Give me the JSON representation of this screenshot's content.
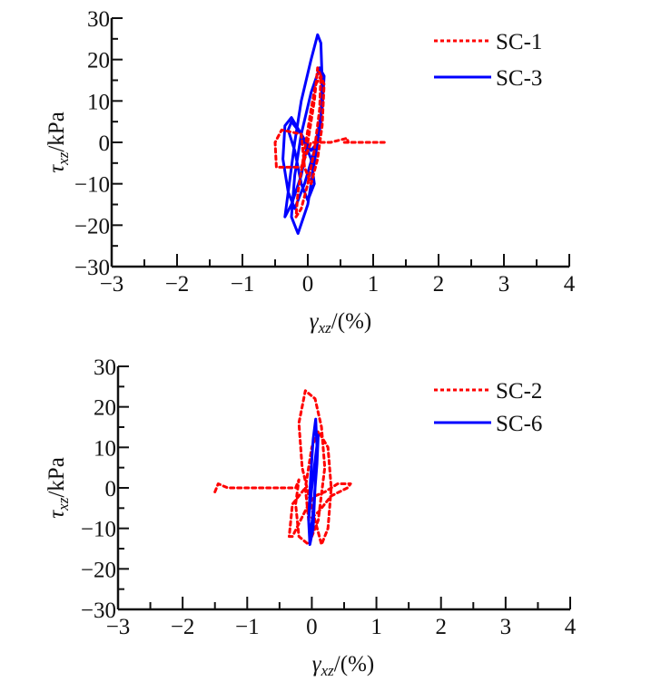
{
  "chart_data": [
    {
      "type": "line",
      "title": "",
      "xlabel": "γxz/(%)",
      "xlabel_parts": {
        "symbol": "γ",
        "sub": "xz",
        "rest": "/(%)"
      },
      "ylabel": "τxz/kPa",
      "ylabel_parts": {
        "symbol": "τ",
        "sub": "xz",
        "rest": "/kPa"
      },
      "xlim": [
        -3,
        4
      ],
      "ylim": [
        -30,
        30
      ],
      "xticks": [
        "−3",
        "−2",
        "−1",
        "0",
        "1",
        "2",
        "3",
        "4"
      ],
      "yticks": [
        "30",
        "20",
        "10",
        "0",
        "−10",
        "−20",
        "−30"
      ],
      "xtick_values": [
        -3,
        -2,
        -1,
        0,
        1,
        2,
        3,
        4
      ],
      "ytick_values": [
        30,
        20,
        10,
        0,
        -10,
        -20,
        -30
      ],
      "grid": false,
      "legend_position": "top-right",
      "series": [
        {
          "name": "SC-3",
          "color": "#0000ff",
          "style": "solid",
          "x": [
            0.0,
            -0.1,
            -0.25,
            -0.35,
            -0.3,
            -0.2,
            -0.1,
            0.05,
            0.15,
            0.2,
            0.22,
            0.2,
            0.1,
            0.0,
            -0.15,
            -0.25,
            -0.2,
            -0.1,
            0.05,
            0.18,
            0.25,
            0.22,
            0.1,
            -0.05,
            -0.2,
            -0.3,
            -0.38,
            -0.35,
            -0.25,
            -0.1,
            0.05,
            0.1,
            0.0,
            -0.1,
            -0.2,
            -0.3,
            -0.25,
            -0.1,
            0.05,
            0.15
          ],
          "y": [
            0,
            -8,
            -15,
            -18,
            -12,
            0,
            10,
            20,
            26,
            24,
            15,
            5,
            -5,
            -15,
            -22,
            -18,
            -8,
            2,
            12,
            18,
            16,
            8,
            -2,
            -10,
            -16,
            -12,
            -4,
            4,
            6,
            2,
            -4,
            -10,
            -14,
            -10,
            -2,
            3,
            5,
            2,
            -2,
            0
          ]
        },
        {
          "name": "SC-1",
          "color": "#ff0000",
          "style": "dotted",
          "x": [
            0.0,
            0.1,
            0.15,
            0.2,
            0.18,
            0.1,
            0.0,
            -0.1,
            -0.18,
            -0.15,
            -0.05,
            0.05,
            0.12,
            0.2,
            0.25,
            0.22,
            0.15,
            0.05,
            -0.05,
            -0.1,
            -0.4,
            -0.5,
            -0.48,
            -0.4,
            -0.1,
            0.0,
            0.05,
            0.15,
            0.25,
            0.35,
            0.6,
            0.62,
            0.55,
            0.6,
            0.8,
            1.0,
            1.2
          ],
          "y": [
            0,
            10,
            18,
            16,
            8,
            -2,
            -10,
            -16,
            -18,
            -12,
            -2,
            8,
            14,
            16,
            14,
            4,
            -4,
            -10,
            -6,
            2,
            3,
            0,
            -6,
            -6,
            -6,
            -2,
            0,
            0,
            0,
            0,
            1,
            0,
            0,
            0,
            0,
            0,
            0
          ]
        }
      ]
    },
    {
      "type": "line",
      "title": "",
      "xlabel": "γxz/(%)",
      "xlabel_parts": {
        "symbol": "γ",
        "sub": "xz",
        "rest": "/(%)"
      },
      "ylabel": "τxz/kPa",
      "ylabel_parts": {
        "symbol": "τ",
        "sub": "xz",
        "rest": "/kPa"
      },
      "xlim": [
        -3,
        4
      ],
      "ylim": [
        -30,
        30
      ],
      "xticks": [
        "−3",
        "−2",
        "−1",
        "0",
        "1",
        "2",
        "3",
        "4"
      ],
      "yticks": [
        "30",
        "20",
        "10",
        "0",
        "−10",
        "−20",
        "−30"
      ],
      "xtick_values": [
        -3,
        -2,
        -1,
        0,
        1,
        2,
        3,
        4
      ],
      "ytick_values": [
        30,
        20,
        10,
        0,
        -10,
        -20,
        -30
      ],
      "grid": false,
      "legend_position": "top-right",
      "series": [
        {
          "name": "SC-2",
          "color": "#ff0000",
          "style": "dotted",
          "x": [
            -1.5,
            -1.45,
            -1.3,
            -1.1,
            -0.9,
            -0.6,
            -0.4,
            -0.25,
            -0.2,
            -0.25,
            -0.2,
            -0.05,
            0.1,
            0.2,
            0.15,
            0.05,
            -0.1,
            -0.2,
            -0.15,
            0.0,
            0.15,
            0.25,
            0.3,
            0.25,
            0.1,
            0.0,
            -0.1,
            -0.05,
            0.1,
            0.3,
            0.55,
            0.6,
            0.4,
            0.2,
            0.05,
            -0.05,
            -0.3,
            -0.35,
            -0.3,
            -0.1
          ],
          "y": [
            -1,
            1,
            0,
            0,
            0,
            0,
            0,
            0,
            2,
            -4,
            -12,
            -14,
            -8,
            5,
            15,
            22,
            24,
            16,
            5,
            -5,
            -14,
            -10,
            0,
            10,
            14,
            10,
            0,
            -8,
            -6,
            -2,
            0,
            1,
            1,
            -1,
            -2,
            -4,
            -12,
            -12,
            -4,
            0
          ]
        },
        {
          "name": "SC-6",
          "color": "#0000ff",
          "style": "solid",
          "x": [
            0.0,
            -0.05,
            -0.03,
            0.02,
            0.05,
            0.08,
            0.06,
            0.02,
            -0.02,
            -0.05,
            -0.02,
            0.03,
            0.08,
            0.1,
            0.06,
            0.0
          ],
          "y": [
            0,
            -8,
            -14,
            -10,
            0,
            10,
            17,
            12,
            2,
            -8,
            -12,
            -4,
            6,
            13,
            8,
            0
          ]
        }
      ]
    }
  ]
}
